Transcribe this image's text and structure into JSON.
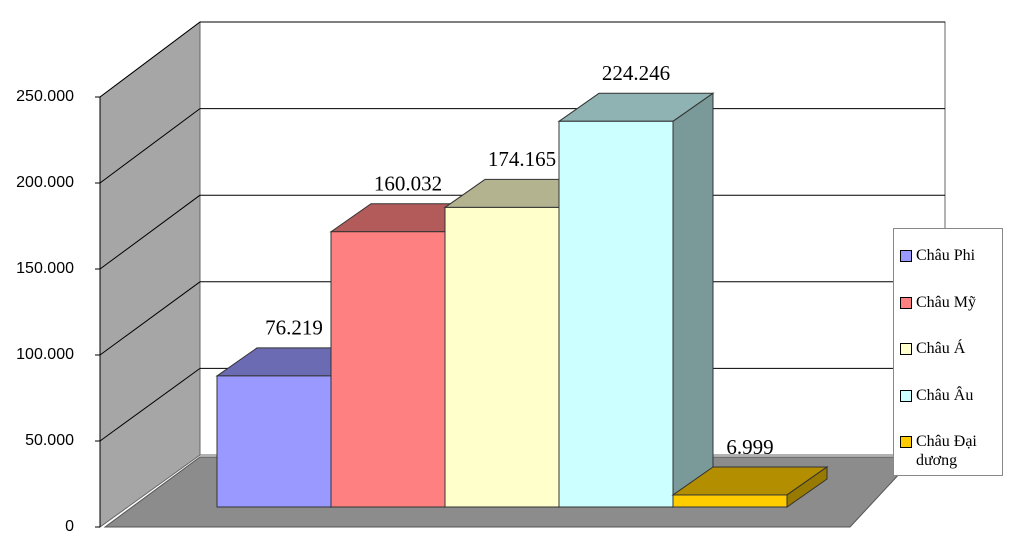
{
  "chart_data": {
    "type": "bar",
    "series": [
      {
        "name": "Châu Phi",
        "color": "#9999ff",
        "values": [
          76219
        ],
        "value_labels": [
          "76.219"
        ]
      },
      {
        "name": "Châu Mỹ",
        "color": "#ff8080",
        "values": [
          160032
        ],
        "value_labels": [
          "160.032"
        ]
      },
      {
        "name": "Châu Á",
        "color": "#ffffcc",
        "values": [
          174165
        ],
        "value_labels": [
          "174.165"
        ]
      },
      {
        "name": "Châu Âu",
        "color": "#ccffff",
        "values": [
          224246
        ],
        "value_labels": [
          "224.246"
        ]
      },
      {
        "name": "Châu Đại dương",
        "color": "#ffcc00",
        "values": [
          6999
        ],
        "value_labels": [
          "6.999"
        ]
      }
    ],
    "ylim": [
      0,
      250000
    ],
    "yticks": [
      0,
      {
        "value": 50000,
        "label": "50.000"
      },
      {
        "value": 100000,
        "label": "100.000"
      },
      {
        "value": 150000,
        "label": "150.000"
      },
      {
        "value": 200000,
        "label": "200.000"
      },
      {
        "value": 250000,
        "label": "250.000"
      }
    ],
    "grid": true,
    "legend": "right"
  }
}
